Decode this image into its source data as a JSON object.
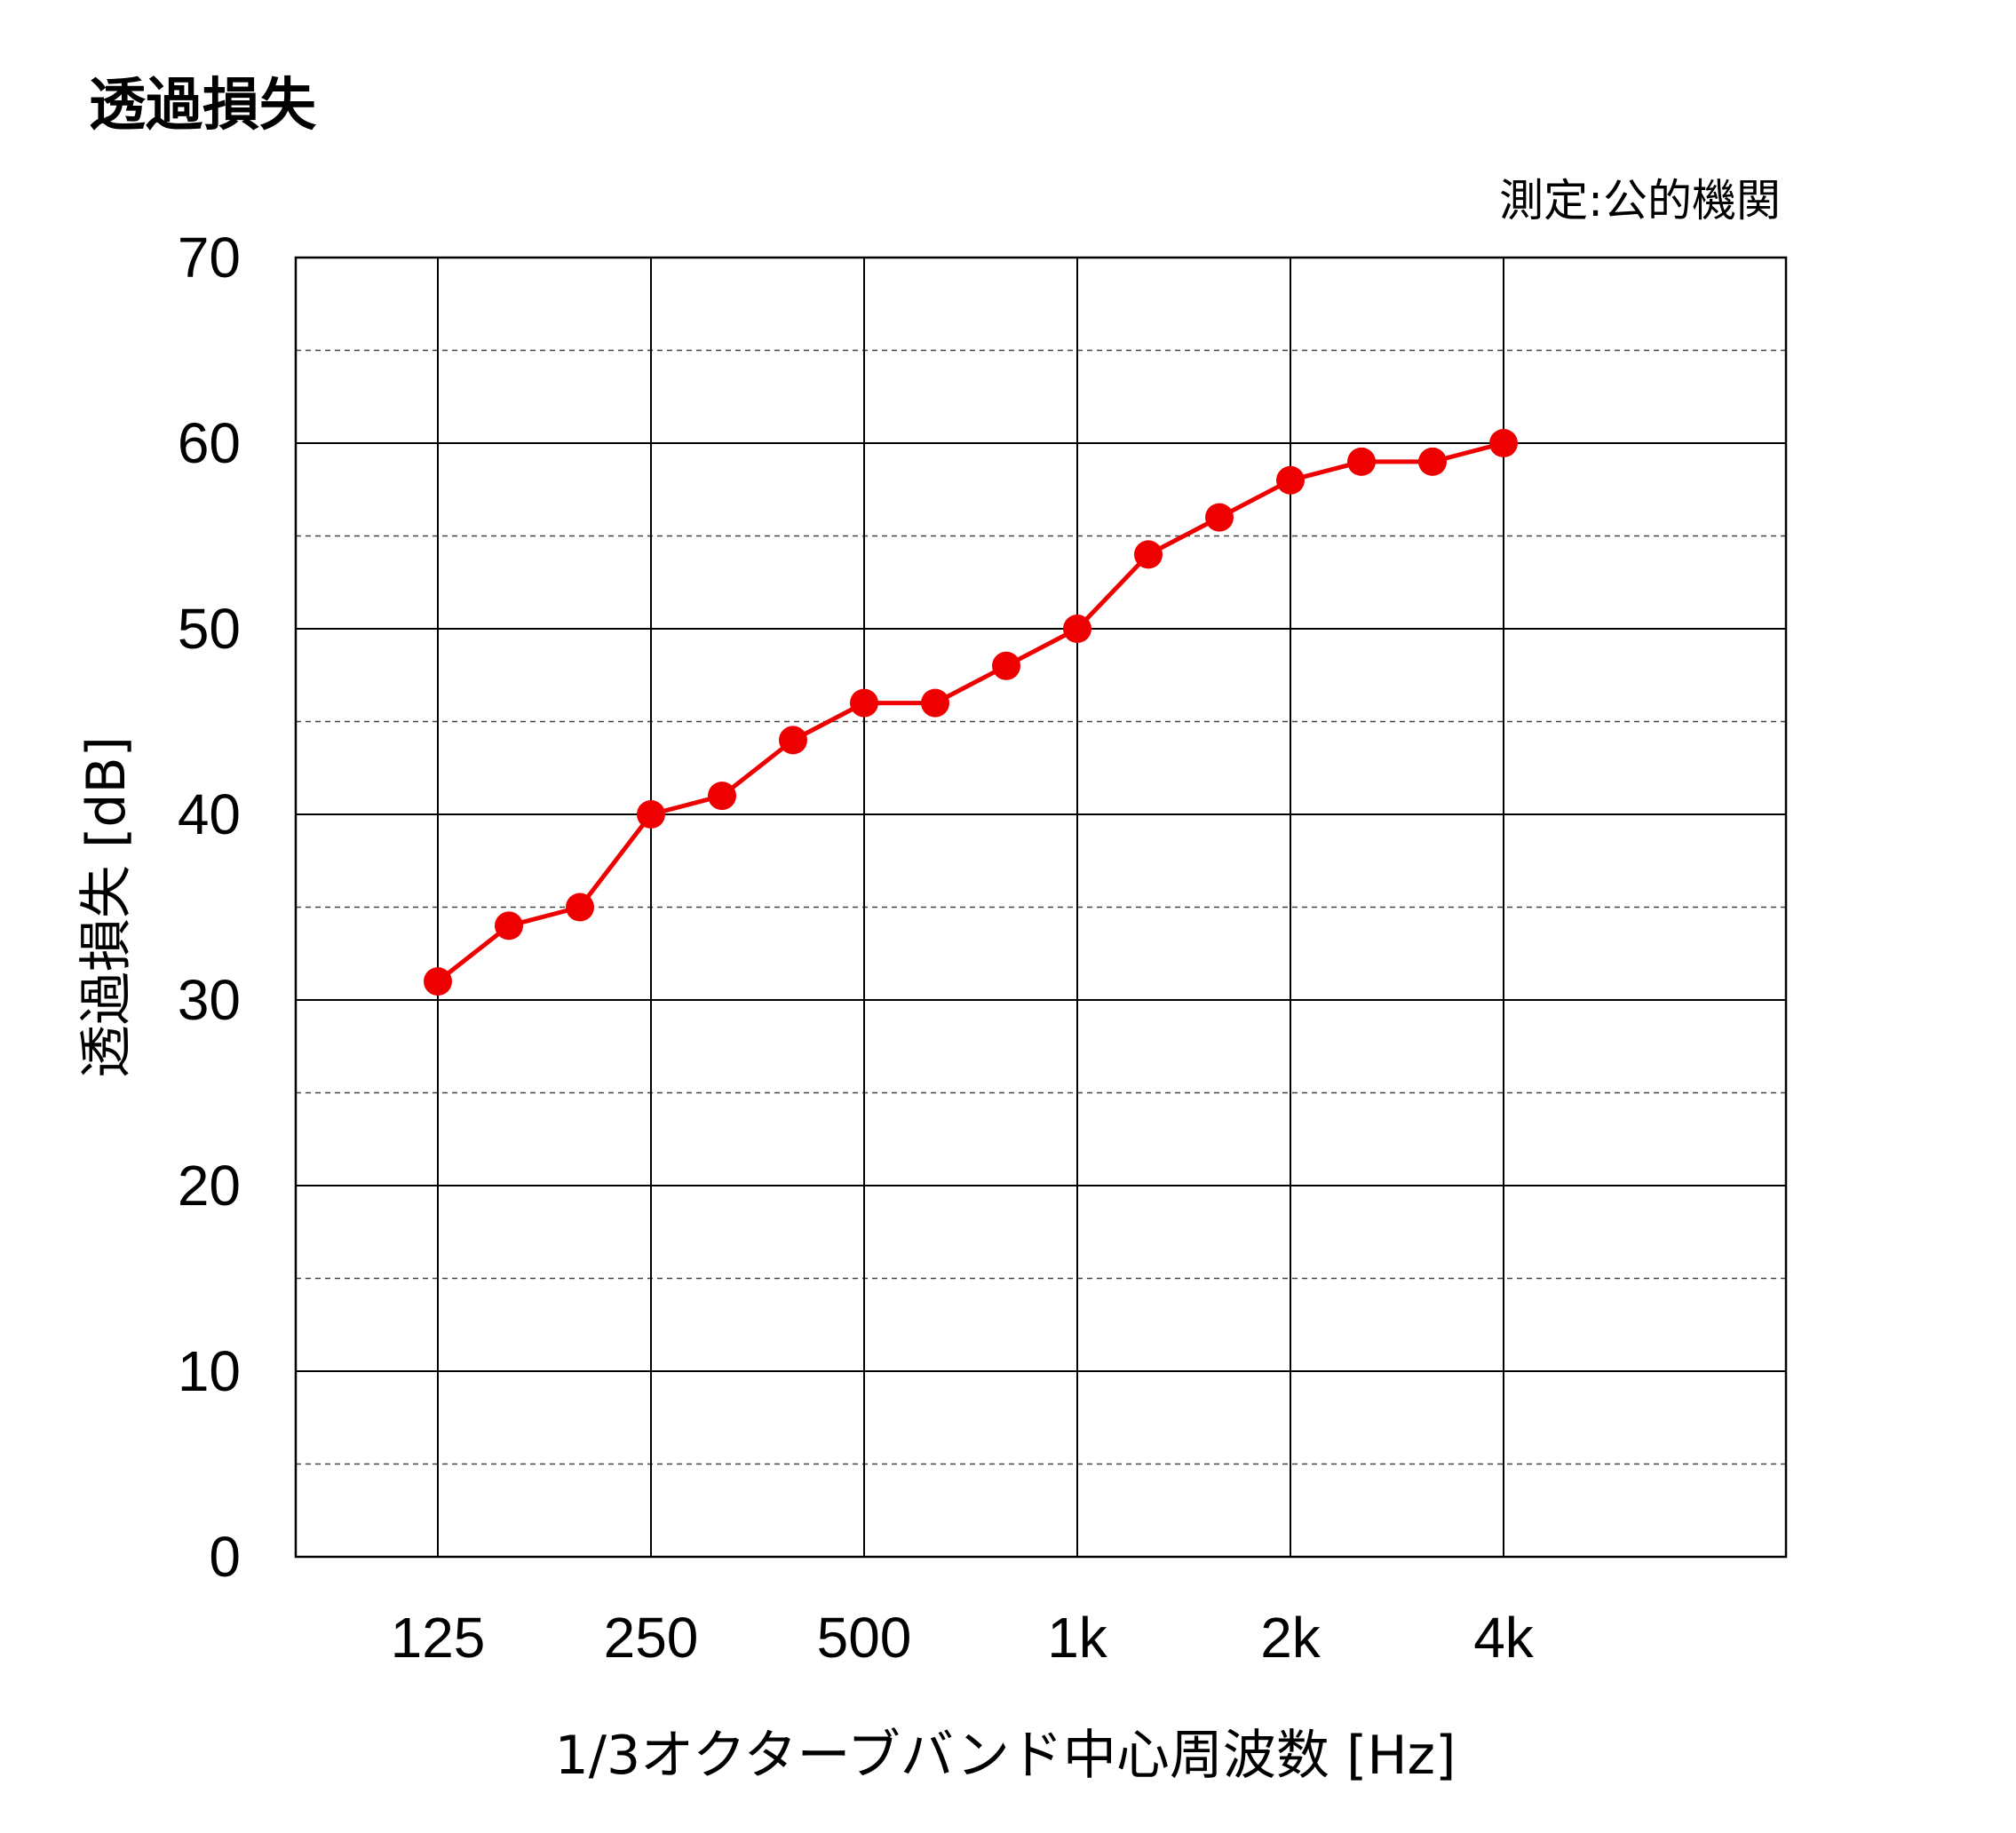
{
  "chart_data": {
    "type": "line",
    "title": "透過損失",
    "annotation": "測定:公的機関",
    "ylabel": "透過損失 [dB]",
    "xlabel": "1/3オクターブバンド中心周波数 [Hz]",
    "ylim": [
      0,
      70
    ],
    "yticks": [
      "0",
      "10",
      "20",
      "30",
      "40",
      "50",
      "60",
      "70"
    ],
    "xticks": [
      "125",
      "250",
      "500",
      "1k",
      "2k",
      "4k"
    ],
    "x_scale": "log (1/3 octave bands)",
    "grid": {
      "major": "solid",
      "minor_y": "dashed"
    },
    "line_color": "#ee0000",
    "x": [
      "125",
      "160",
      "200",
      "250",
      "315",
      "400",
      "500",
      "630",
      "800",
      "1k",
      "1.25k",
      "1.6k",
      "2k",
      "2.5k",
      "3.15k",
      "4k"
    ],
    "values": [
      31,
      34,
      35,
      40,
      41,
      44,
      46,
      46,
      48,
      50,
      54,
      56,
      58,
      59,
      59,
      60
    ]
  }
}
